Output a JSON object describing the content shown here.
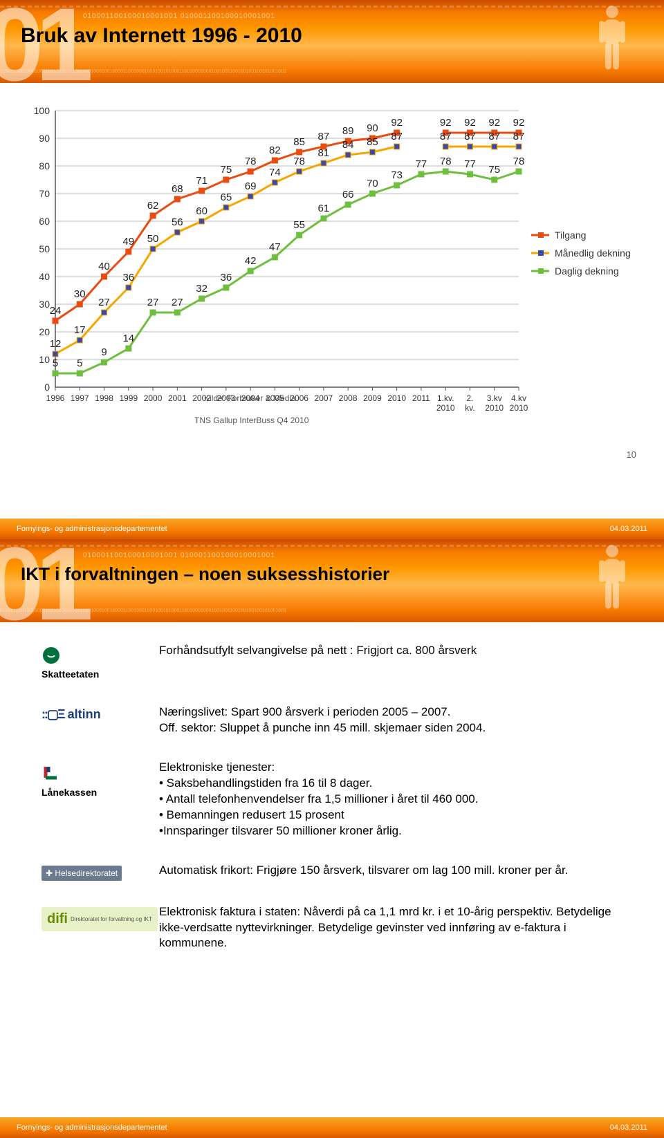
{
  "footer": {
    "dept": "Fornyings- og administrasjonsdepartementet",
    "date": "04.03.2011"
  },
  "slide1": {
    "title": "Bruk av Internett 1996 - 2010",
    "page_num": "10",
    "source1": "Kilde: Forbruker & Media",
    "source2": "TNS Gallup InterBuss Q4 2010",
    "chart": {
      "type": "line",
      "ylim": [
        0,
        100
      ],
      "ytick_step": 10,
      "categories": [
        "1996",
        "1997",
        "1998",
        "1999",
        "2000",
        "2001",
        "2002",
        "2003",
        "2004",
        "2005",
        "2006",
        "2007",
        "2008",
        "2009",
        "2010",
        "2011",
        "1.kv. 2010",
        "2. kv. 2010",
        "3.kv 2010",
        "4.kv 2010"
      ],
      "series": [
        {
          "name": "Tilgang",
          "color": "#e84c10",
          "marker": "square",
          "marker_fill": "#e84c10",
          "values": [
            24,
            30,
            40,
            49,
            62,
            68,
            71,
            75,
            78,
            82,
            85,
            87,
            89,
            90,
            92,
            null,
            92,
            92,
            92,
            92
          ]
        },
        {
          "name": "Månedlig dekning",
          "color": "#f7a600",
          "marker": "square",
          "marker_fill": "#3a4aa8",
          "values": [
            12,
            17,
            27,
            36,
            50,
            56,
            60,
            65,
            69,
            74,
            78,
            81,
            84,
            85,
            87,
            null,
            87,
            87,
            87,
            87
          ]
        },
        {
          "name": "Daglig dekning",
          "color": "#6fbf3f",
          "marker": "square",
          "marker_fill": "#6fbf3f",
          "values": [
            5,
            5,
            9,
            14,
            27,
            27,
            32,
            36,
            42,
            47,
            55,
            61,
            66,
            70,
            73,
            77,
            78,
            77,
            75,
            78
          ]
        }
      ],
      "legend_pos": "right",
      "background_color": "#ffffff",
      "grid_color": "#bbbbbb",
      "label_fontsize": 15
    }
  },
  "slide2": {
    "title": "IKT i forvaltningen – noen suksesshistorier",
    "rows": [
      {
        "logo": "Skatteetaten",
        "logo_style": "skatt",
        "text": "Forhåndsutfylt selvangivelse på nett : Frigjort ca. 800 årsverk"
      },
      {
        "logo": "altinn",
        "logo_style": "altinn",
        "text_lines": [
          "Næringslivet: Spart  900 årsverk i perioden 2005 – 2007.",
          "Off. sektor: Sluppet å punche inn 45 mill. skjemaer siden 2004."
        ]
      },
      {
        "logo": "Lånekassen",
        "logo_style": "lanekassen",
        "heading": "Elektroniske tjenester:",
        "bullets": [
          "Saksbehandlingstiden fra 16 til 8 dager.",
          "Antall telefonhenvendelser fra 1,5 millioner i året til 460 000.",
          "Bemanningen redusert 15 prosent"
        ],
        "bullet_last": "Innsparinger tilsvarer 50 millioner kroner årlig."
      },
      {
        "logo": "Helsedirektoratet",
        "logo_style": "helse",
        "text": "Automatisk frikort: Frigjøre 150 årsverk, tilsvarer om lag 100 mill. kroner per år."
      },
      {
        "logo": "difi",
        "logo_style": "difi",
        "logo_sub": "Direktoratet for forvaltning og IKT",
        "text": "Elektronisk faktura i staten: Nåverdi på ca 1,1 mrd kr. i et 10-årig perspektiv. Betydelige ikke-verdsatte nyttevirkninger. Betydelige gevinster ved innføring av e-faktura i kommunene."
      }
    ]
  },
  "deco": {
    "binary1": "010001100100010001001 010001100100010001001",
    "binary2": "01000110010001000100101000110010001000100100001100100010001001010001100100010001001001100100100100101001001"
  }
}
